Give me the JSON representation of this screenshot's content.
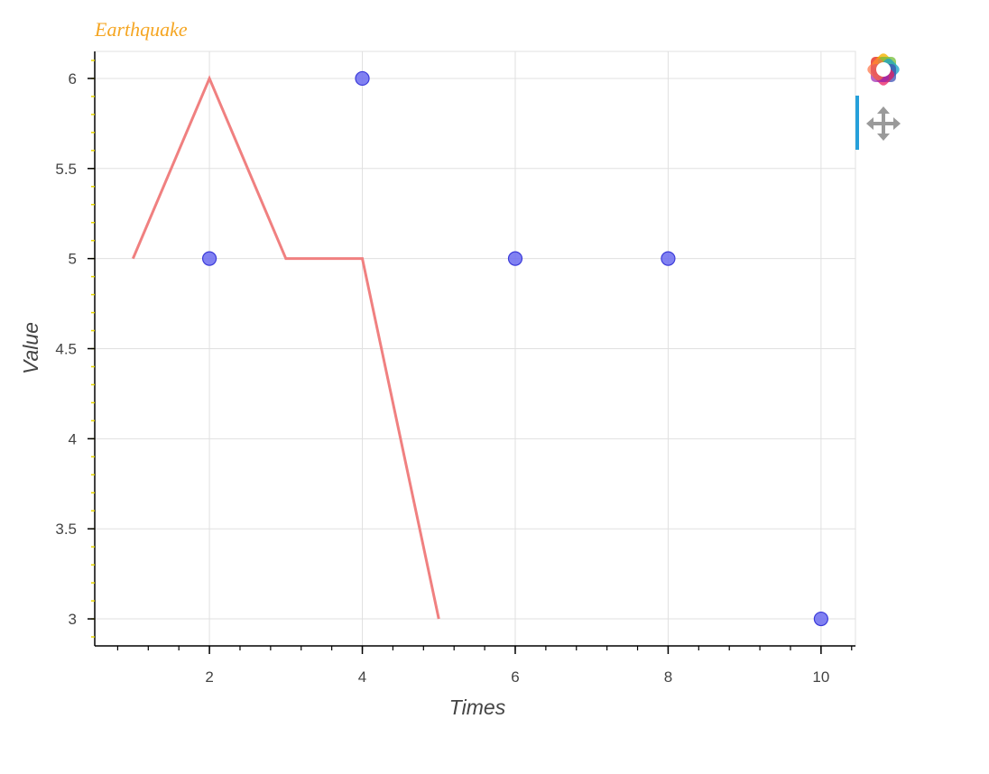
{
  "chart_data": {
    "type": "line",
    "title": "Earthquake",
    "xlabel": "Times",
    "ylabel": "Value",
    "xlim": [
      0.5,
      10.45
    ],
    "ylim": [
      2.85,
      6.15
    ],
    "x_ticks": [
      2,
      4,
      6,
      8,
      10
    ],
    "x_minor_step": 0.4,
    "y_ticks": [
      3,
      3.5,
      4,
      4.5,
      5,
      5.5,
      6
    ],
    "y_minor_step": 0.1,
    "grid": true,
    "series": [
      {
        "mark": "line",
        "x": [
          1,
          2,
          3,
          4,
          5
        ],
        "y": [
          5,
          6,
          5,
          5,
          3
        ]
      },
      {
        "mark": "scatter",
        "x": [
          2,
          4,
          6,
          8,
          10
        ],
        "y": [
          5,
          6,
          5,
          5,
          3
        ]
      }
    ]
  },
  "colors": {
    "title": "#f5a623",
    "line": "#f08080",
    "marker_fill": "#6b6bf0",
    "marker_stroke": "#3b3bd9",
    "grid": "#e0e0e0",
    "axis": "#000000",
    "minor_tick_y": "#e8d800",
    "tool_active": "#26a0da"
  },
  "toolbar": {
    "tools": [
      {
        "name": "bokeh-logo-icon"
      },
      {
        "name": "pan-icon"
      }
    ]
  }
}
